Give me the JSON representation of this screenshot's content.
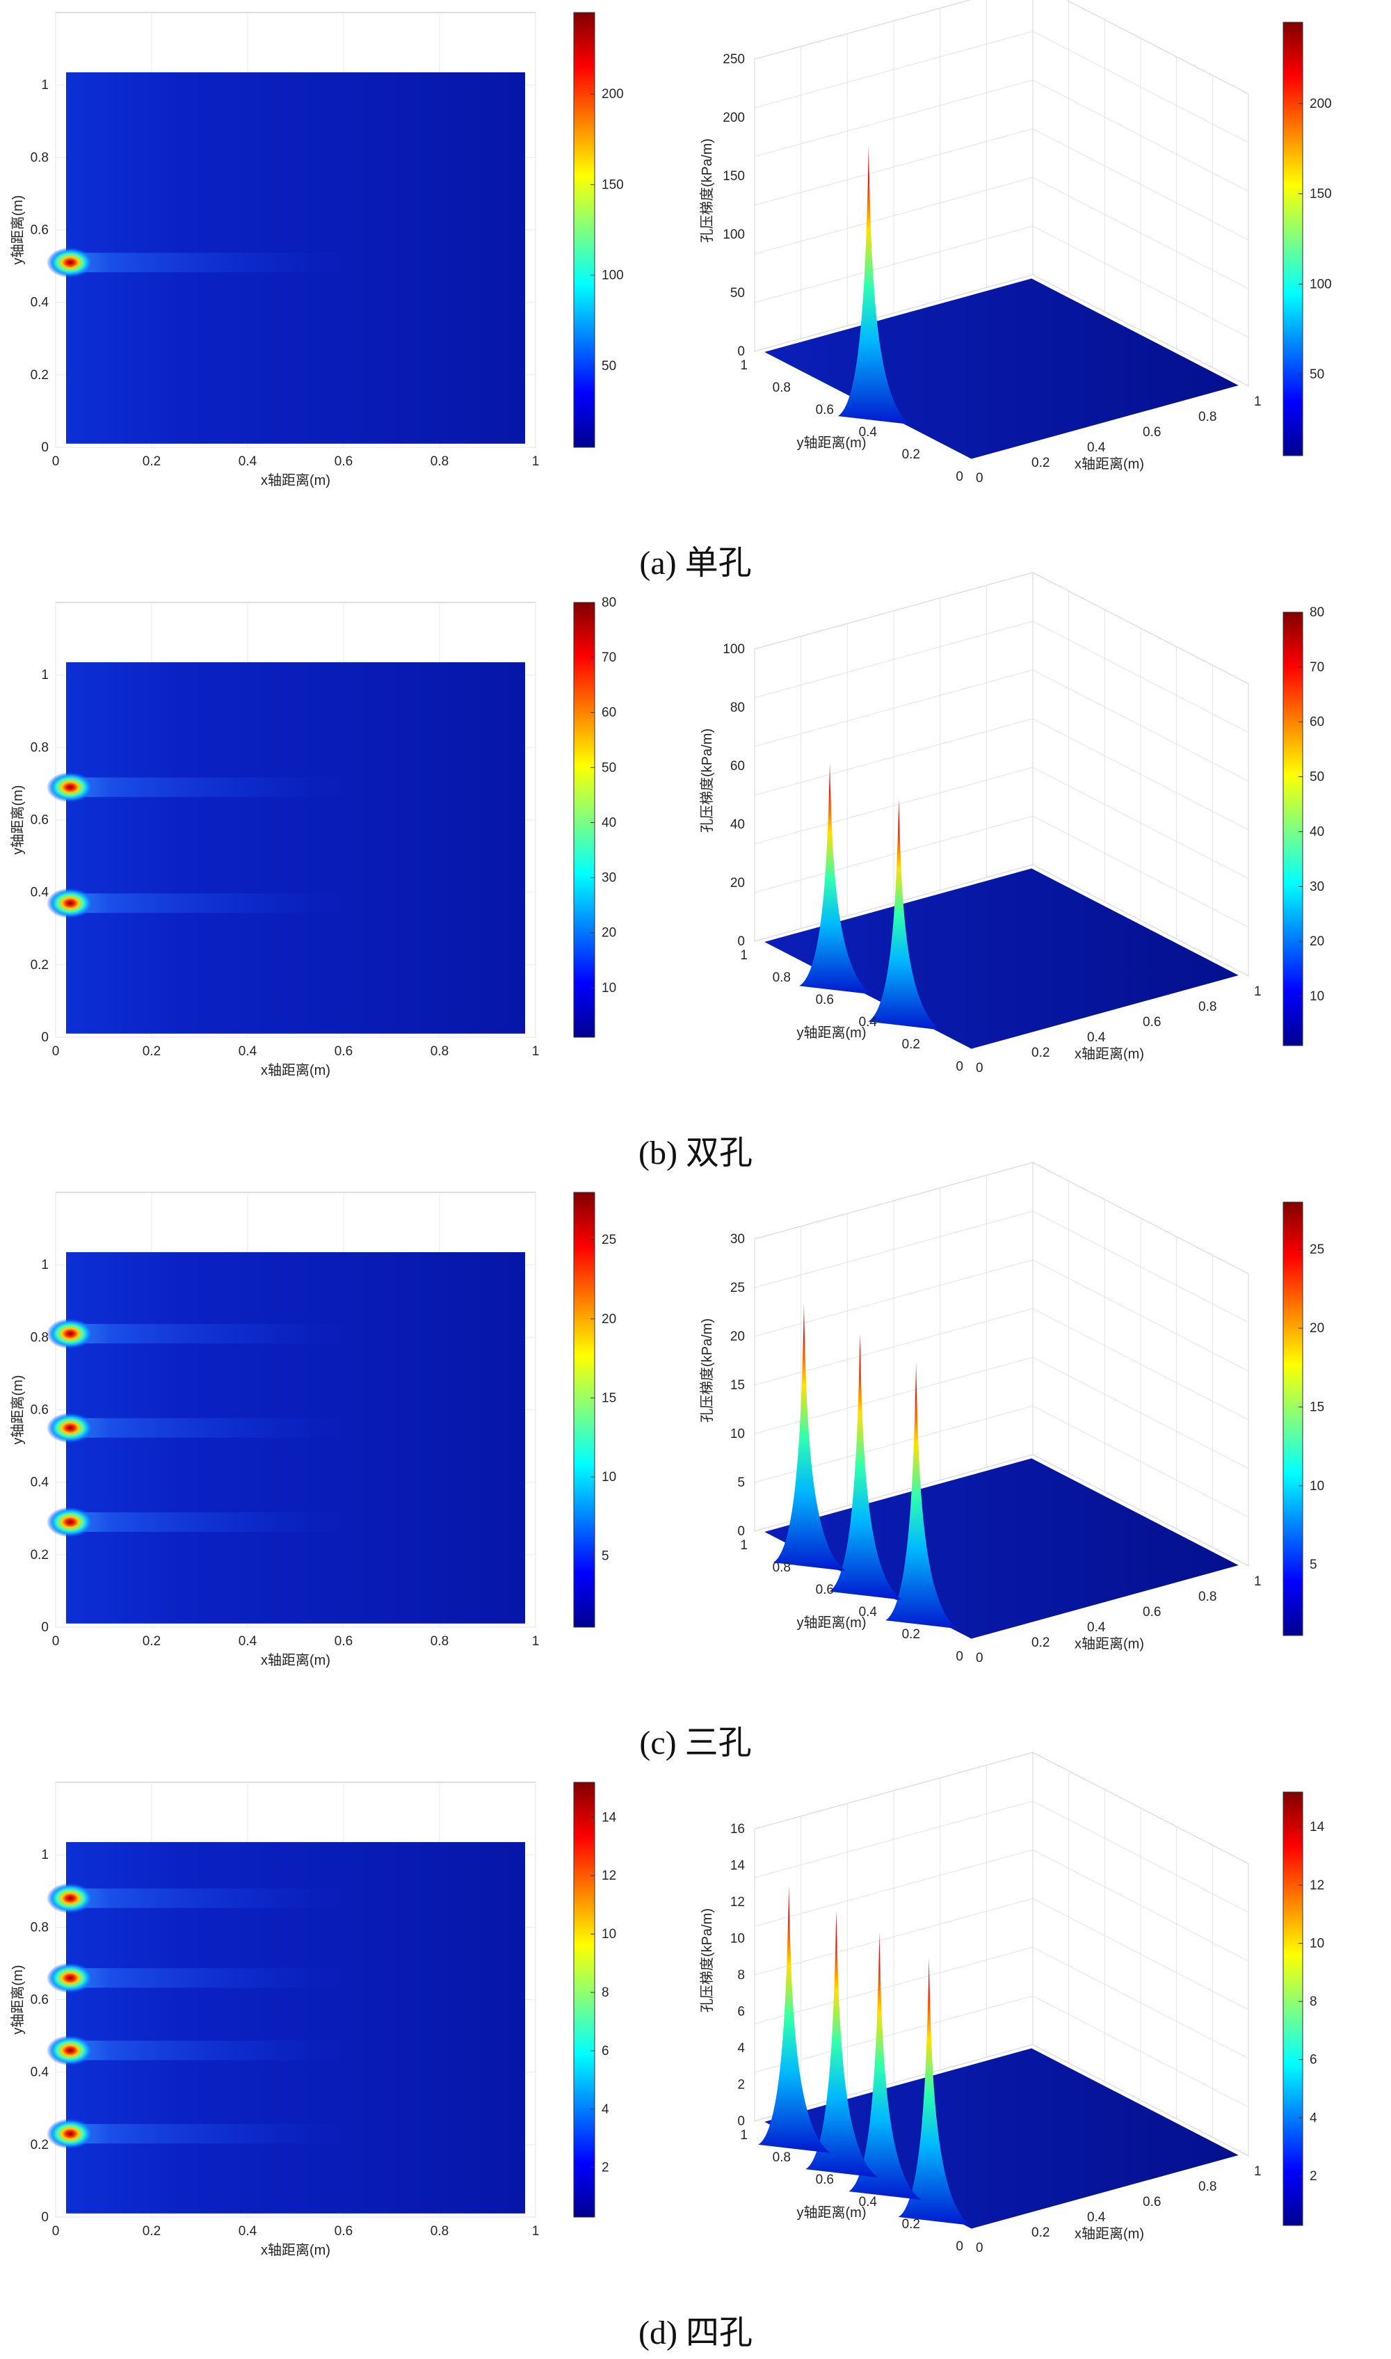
{
  "chart_data": [
    {
      "type": "heatmap",
      "caption": "(a) 单孔",
      "holes_y": [
        0.51
      ],
      "peak": 245,
      "xlabel": "x轴距离(m)",
      "ylabel": "y轴距离(m)",
      "x_ticks": [
        "0",
        "0.2",
        "0.4",
        "0.6",
        "0.8",
        "1"
      ],
      "y_ticks": [
        "0",
        "0.2",
        "0.4",
        "0.6",
        "0.8",
        "1"
      ],
      "colorbar_ticks": [
        "50",
        "100",
        "150",
        "200"
      ],
      "colorbar_range": [
        5,
        245
      ],
      "surface": {
        "zlabel": "孔压梯度(kPa/m)",
        "xlabel": "x轴距离(m)",
        "ylabel": "y轴距离(m)",
        "z_ticks": [
          "0",
          "50",
          "100",
          "150",
          "200",
          "250"
        ],
        "x_ticks": [
          "0",
          "0.2",
          "0.4",
          "0.6",
          "0.8",
          "1"
        ],
        "y_ticks": [
          "0",
          "0.2",
          "0.4",
          "0.6",
          "0.8",
          "1"
        ],
        "colorbar_ticks": [
          "50",
          "100",
          "150",
          "200"
        ]
      }
    },
    {
      "type": "heatmap",
      "caption": "(b) 双孔",
      "holes_y": [
        0.37,
        0.69
      ],
      "peak": 80,
      "xlabel": "x轴距离(m)",
      "ylabel": "y轴距离(m)",
      "x_ticks": [
        "0",
        "0.2",
        "0.4",
        "0.6",
        "0.8",
        "1"
      ],
      "y_ticks": [
        "0",
        "0.2",
        "0.4",
        "0.6",
        "0.8",
        "1"
      ],
      "colorbar_ticks": [
        "10",
        "20",
        "30",
        "40",
        "50",
        "60",
        "70",
        "80"
      ],
      "colorbar_range": [
        1,
        80
      ],
      "surface": {
        "zlabel": "孔压梯度(kPa/m)",
        "xlabel": "x轴距离(m)",
        "ylabel": "y轴距离(m)",
        "z_ticks": [
          "0",
          "20",
          "40",
          "60",
          "80",
          "100"
        ],
        "x_ticks": [
          "0",
          "0.2",
          "0.4",
          "0.6",
          "0.8",
          "1"
        ],
        "y_ticks": [
          "0",
          "0.2",
          "0.4",
          "0.6",
          "0.8",
          "1"
        ],
        "colorbar_ticks": [
          "10",
          "20",
          "30",
          "40",
          "50",
          "60",
          "70",
          "80"
        ]
      }
    },
    {
      "type": "heatmap",
      "caption": "(c) 三孔",
      "holes_y": [
        0.29,
        0.55,
        0.81
      ],
      "peak": 28,
      "xlabel": "x轴距离(m)",
      "ylabel": "y轴距离(m)",
      "x_ticks": [
        "0",
        "0.2",
        "0.4",
        "0.6",
        "0.8",
        "1"
      ],
      "y_ticks": [
        "0",
        "0.2",
        "0.4",
        "0.6",
        "0.8",
        "1"
      ],
      "colorbar_ticks": [
        "5",
        "10",
        "15",
        "20",
        "25"
      ],
      "colorbar_range": [
        0.5,
        28
      ],
      "surface": {
        "zlabel": "孔压梯度(kPa/m)",
        "xlabel": "x轴距离(m)",
        "ylabel": "y轴距离(m)",
        "z_ticks": [
          "0",
          "5",
          "10",
          "15",
          "20",
          "25",
          "30"
        ],
        "x_ticks": [
          "0",
          "0.2",
          "0.4",
          "0.6",
          "0.8",
          "1"
        ],
        "y_ticks": [
          "0",
          "0.2",
          "0.4",
          "0.6",
          "0.8",
          "1"
        ],
        "colorbar_ticks": [
          "5",
          "10",
          "15",
          "20",
          "25"
        ]
      }
    },
    {
      "type": "heatmap",
      "caption": "(d) 四孔",
      "holes_y": [
        0.23,
        0.46,
        0.66,
        0.88
      ],
      "peak": 15,
      "xlabel": "x轴距离(m)",
      "ylabel": "y轴距离(m)",
      "x_ticks": [
        "0",
        "0.2",
        "0.4",
        "0.6",
        "0.8",
        "1"
      ],
      "y_ticks": [
        "0",
        "0.2",
        "0.4",
        "0.6",
        "0.8",
        "1"
      ],
      "colorbar_ticks": [
        "2",
        "4",
        "6",
        "8",
        "10",
        "12",
        "14"
      ],
      "colorbar_range": [
        0.3,
        15.2
      ],
      "surface": {
        "zlabel": "孔压梯度(kPa/m)",
        "xlabel": "x轴距离(m)",
        "ylabel": "y轴距离(m)",
        "z_ticks": [
          "0",
          "2",
          "4",
          "6",
          "8",
          "10",
          "12",
          "14",
          "16"
        ],
        "x_ticks": [
          "0",
          "0.2",
          "0.4",
          "0.6",
          "0.8",
          "1"
        ],
        "y_ticks": [
          "0",
          "0.2",
          "0.4",
          "0.6",
          "0.8",
          "1"
        ],
        "colorbar_ticks": [
          "2",
          "4",
          "6",
          "8",
          "10",
          "12",
          "14"
        ]
      }
    }
  ]
}
